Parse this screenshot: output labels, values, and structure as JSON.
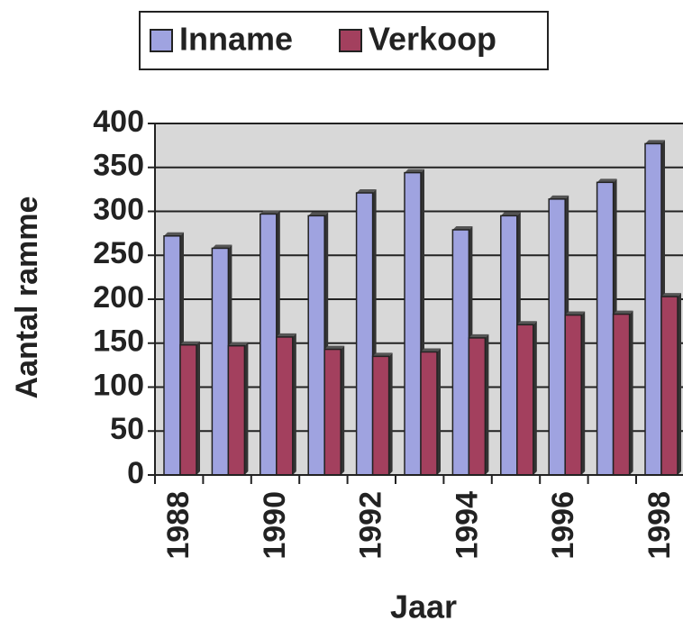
{
  "chart_data": {
    "type": "bar",
    "categories": [
      "1988",
      null,
      "1990",
      null,
      "1992",
      null,
      "1994",
      null,
      "1996",
      null,
      "1998"
    ],
    "series": [
      {
        "name": "Inname",
        "color": "#9fa3e0",
        "values": [
          272,
          258,
          297,
          295,
          321,
          344,
          279,
          295,
          314,
          333,
          377
        ]
      },
      {
        "name": "Verkoop",
        "color": "#a3405e",
        "values": [
          148,
          147,
          157,
          143,
          135,
          140,
          156,
          171,
          182,
          183,
          203
        ]
      }
    ],
    "xlabel": "Jaar",
    "ylabel": "Aantal ramme",
    "ylim": [
      0,
      400
    ],
    "yticks": [
      0,
      50,
      100,
      150,
      200,
      250,
      300,
      350,
      400
    ],
    "grid": true,
    "legend": "top"
  }
}
